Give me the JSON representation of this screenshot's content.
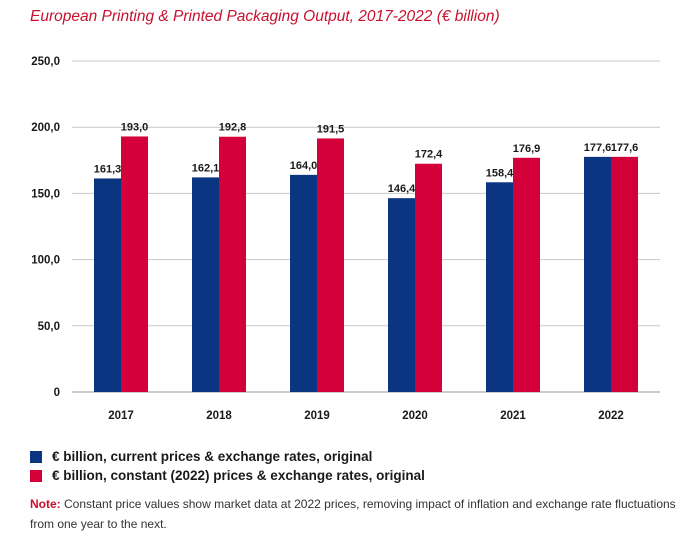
{
  "title": "European Printing & Printed Packaging Output, 2017-2022 (€ billion)",
  "colors": {
    "series1": "#0b3580",
    "series2": "#d4003a",
    "grid": "#c8c8c8",
    "title": "#c8102e"
  },
  "legend": [
    {
      "label": "€ billion, current prices & exchange rates, original"
    },
    {
      "label": "€ billion, constant (2022) prices & exchange rates, original"
    }
  ],
  "note": {
    "label": "Note:",
    "text": " Constant price values show market data at 2022 prices, removing impact of inflation and exchange rate fluctuations from one year to the next."
  },
  "chart_data": {
    "type": "bar",
    "title": "European Printing & Printed Packaging Output, 2017-2022 (€ billion)",
    "categories": [
      "2017",
      "2018",
      "2019",
      "2020",
      "2021",
      "2022"
    ],
    "series": [
      {
        "name": "€ billion, current prices & exchange rates, original",
        "values": [
          161.3,
          162.1,
          164.0,
          146.4,
          158.4,
          177.6
        ],
        "labels": [
          "161,3",
          "162,1",
          "164,0",
          "146,4",
          "158,4",
          "177,6"
        ]
      },
      {
        "name": "€ billion, constant (2022) prices & exchange rates, original",
        "values": [
          193.0,
          192.8,
          191.5,
          172.4,
          176.9,
          177.6
        ],
        "labels": [
          "193,0",
          "192,8",
          "191,5",
          "172,4",
          "176,9",
          "177,6"
        ]
      }
    ],
    "ylim": [
      0,
      250
    ],
    "yticks": [
      0,
      50,
      100,
      150,
      200,
      250
    ],
    "ytick_labels": [
      "0",
      "50,0",
      "100,0",
      "150,0",
      "200,0",
      "250,0"
    ],
    "grid": true,
    "legend_position": "bottom-left"
  }
}
